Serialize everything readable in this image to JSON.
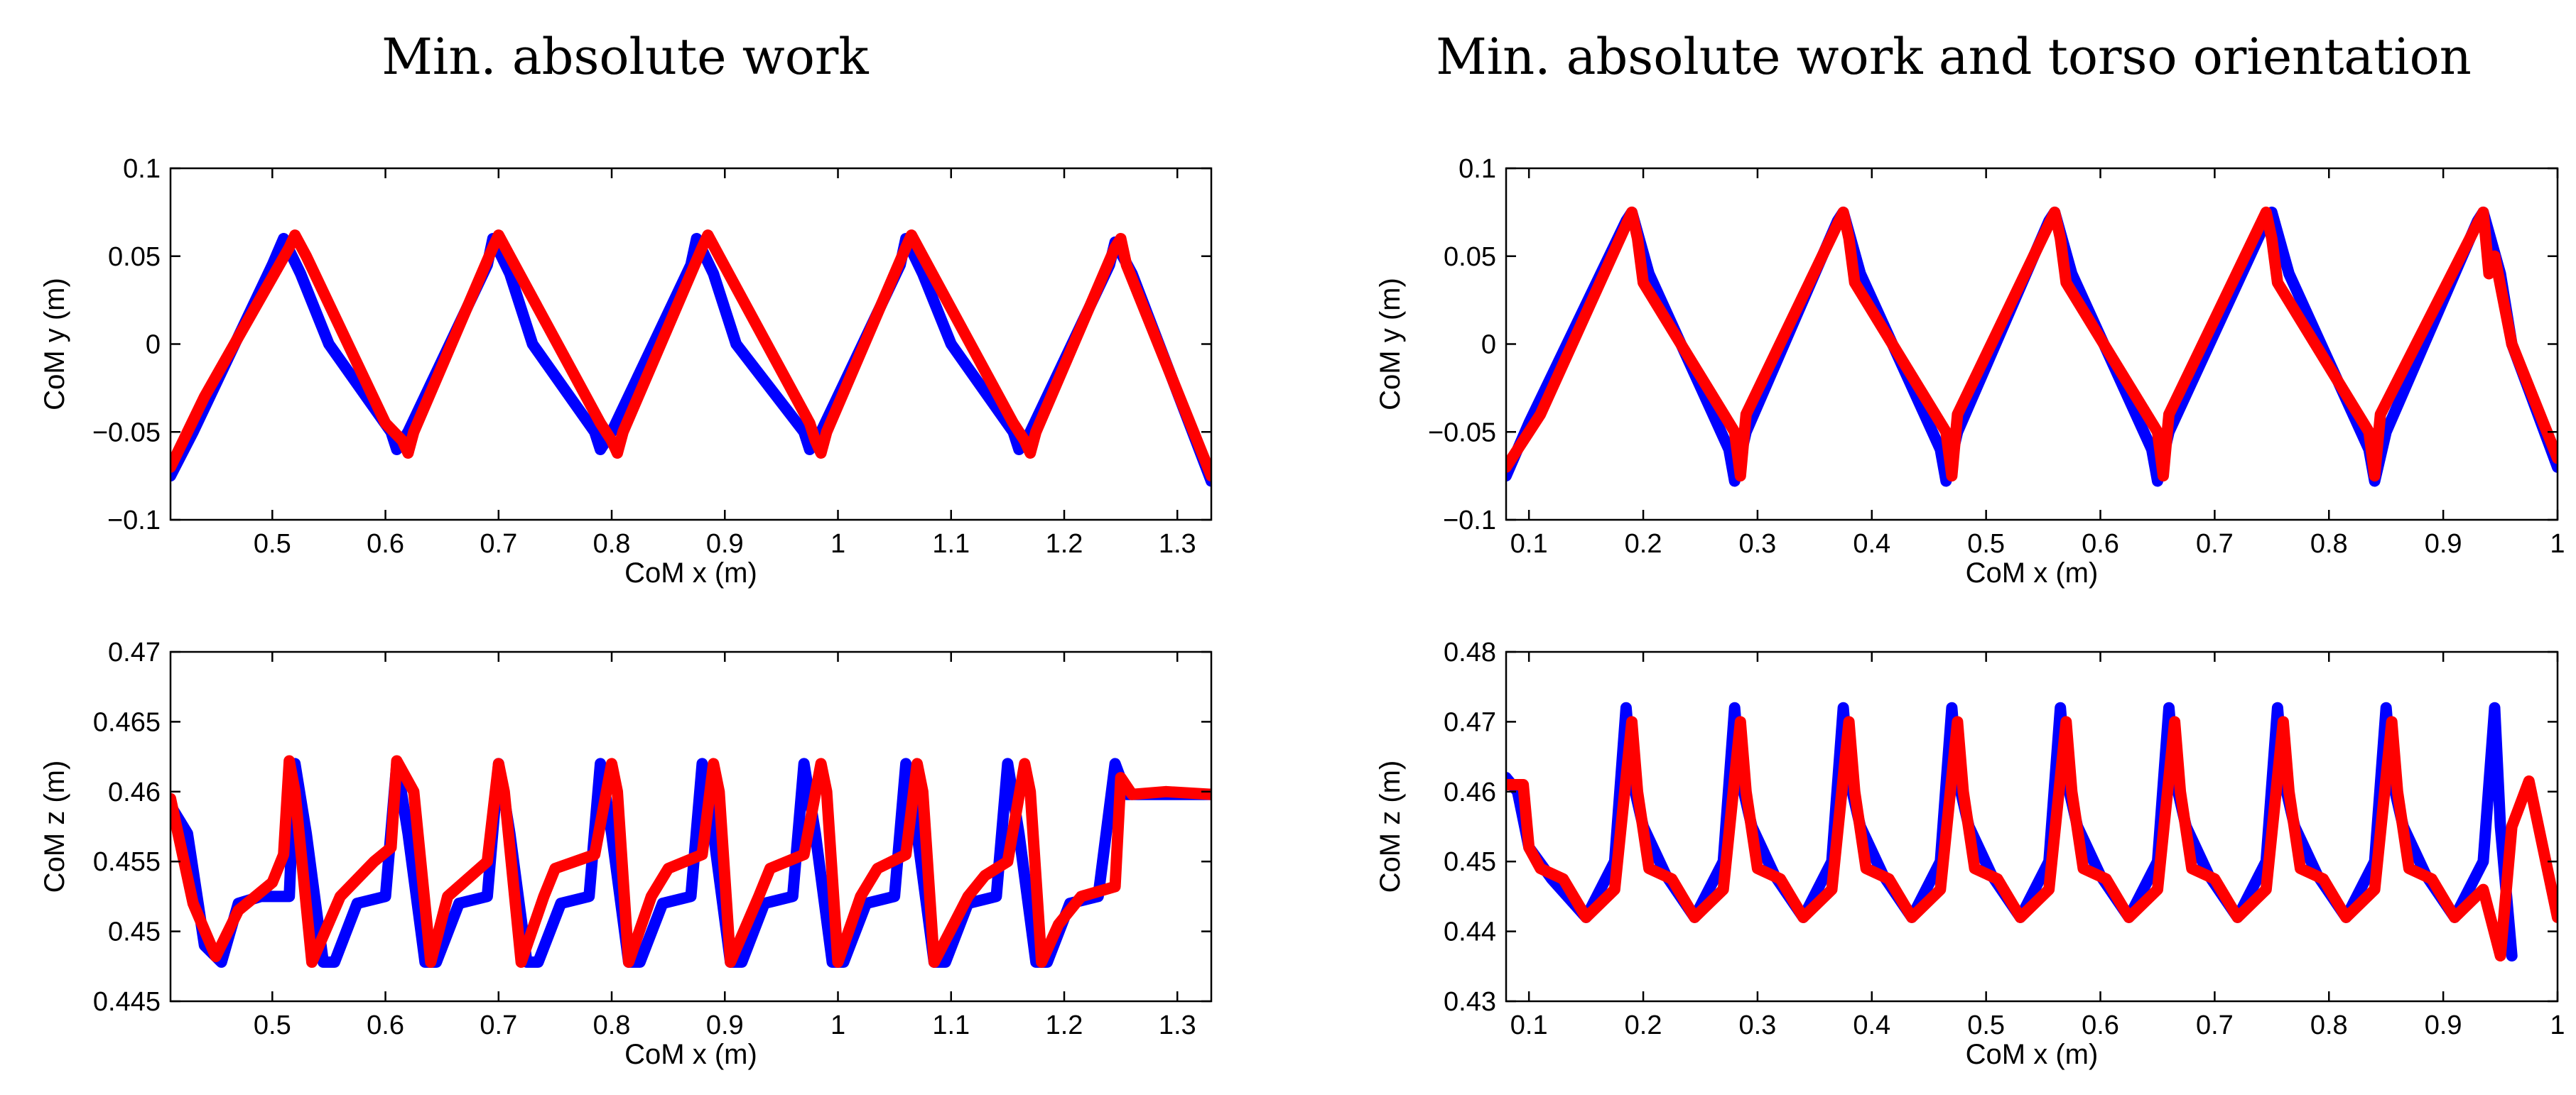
{
  "column_titles": [
    "Min. absolute work",
    "Min. absolute work and torso orientation"
  ],
  "series_colors": {
    "first": "#0000ff",
    "second": "#ff0000"
  },
  "chart_data": [
    {
      "type": "line",
      "xlabel": "CoM x (m)",
      "ylabel": "CoM y (m)",
      "xlim": [
        0.41,
        1.33
      ],
      "ylim": [
        -0.1,
        0.1
      ],
      "xticks": [
        0.5,
        0.6,
        0.7,
        0.8,
        0.9,
        1,
        1.1,
        1.2,
        1.3
      ],
      "xtick_labels": [
        "0.5",
        "0.6",
        "0.7",
        "0.8",
        "0.9",
        "1",
        "1.1",
        "1.2",
        "1.3"
      ],
      "yticks": [
        -0.1,
        -0.05,
        0,
        0.05,
        0.1
      ],
      "ytick_labels": [
        "−0.1",
        "−0.05",
        "0",
        "0.05",
        "0.1"
      ],
      "series": [
        {
          "name": "blue",
          "color": "#0000ff",
          "x": [
            0.41,
            0.43,
            0.5,
            0.51,
            0.525,
            0.55,
            0.605,
            0.61,
            0.62,
            0.69,
            0.695,
            0.71,
            0.73,
            0.785,
            0.79,
            0.8,
            0.87,
            0.875,
            0.89,
            0.91,
            0.97,
            0.975,
            0.985,
            1.055,
            1.06,
            1.075,
            1.1,
            1.155,
            1.16,
            1.17,
            1.24,
            1.245,
            1.26,
            1.33
          ],
          "y": [
            -0.075,
            -0.05,
            0.045,
            0.06,
            0.04,
            0.0,
            -0.05,
            -0.06,
            -0.05,
            0.045,
            0.06,
            0.04,
            0.0,
            -0.05,
            -0.06,
            -0.05,
            0.045,
            0.06,
            0.04,
            0.0,
            -0.05,
            -0.06,
            -0.05,
            0.045,
            0.06,
            0.04,
            0.0,
            -0.05,
            -0.06,
            -0.05,
            0.045,
            0.058,
            0.04,
            -0.078
          ]
        },
        {
          "name": "red",
          "color": "#ff0000",
          "x": [
            0.41,
            0.44,
            0.515,
            0.52,
            0.53,
            0.6,
            0.615,
            0.62,
            0.625,
            0.695,
            0.7,
            0.71,
            0.79,
            0.8,
            0.805,
            0.81,
            0.88,
            0.885,
            0.895,
            0.975,
            0.98,
            0.985,
            0.99,
            1.06,
            1.065,
            1.075,
            1.155,
            1.165,
            1.17,
            1.175,
            1.245,
            1.25,
            1.255,
            1.33
          ],
          "y": [
            -0.07,
            -0.03,
            0.055,
            0.062,
            0.05,
            -0.045,
            -0.055,
            -0.062,
            -0.05,
            0.055,
            0.062,
            0.05,
            -0.045,
            -0.055,
            -0.062,
            -0.05,
            0.055,
            0.062,
            0.05,
            -0.045,
            -0.055,
            -0.062,
            -0.05,
            0.055,
            0.062,
            0.05,
            -0.045,
            -0.055,
            -0.062,
            -0.05,
            0.055,
            0.06,
            0.045,
            -0.075
          ]
        }
      ]
    },
    {
      "type": "line",
      "xlabel": "CoM x (m)",
      "ylabel": "CoM y (m)",
      "xlim": [
        0.08,
        1.0
      ],
      "ylim": [
        -0.1,
        0.1
      ],
      "xticks": [
        0.1,
        0.2,
        0.3,
        0.4,
        0.5,
        0.6,
        0.7,
        0.8,
        0.9,
        1.0
      ],
      "xtick_labels": [
        "0.1",
        "0.2",
        "0.3",
        "0.4",
        "0.5",
        "0.6",
        "0.7",
        "0.8",
        "0.9",
        "1"
      ],
      "yticks": [
        -0.1,
        -0.05,
        0,
        0.05,
        0.1
      ],
      "ytick_labels": [
        "−0.1",
        "−0.05",
        "0",
        "0.05",
        "0.1"
      ],
      "series": [
        {
          "name": "blue",
          "color": "#0000ff",
          "x": [
            0.08,
            0.1,
            0.185,
            0.19,
            0.205,
            0.275,
            0.28,
            0.29,
            0.37,
            0.375,
            0.39,
            0.46,
            0.465,
            0.475,
            0.555,
            0.56,
            0.575,
            0.645,
            0.65,
            0.66,
            0.745,
            0.75,
            0.765,
            0.835,
            0.84,
            0.85,
            0.93,
            0.935,
            0.95,
            0.96,
            1.0
          ],
          "y": [
            -0.075,
            -0.045,
            0.07,
            0.075,
            0.04,
            -0.06,
            -0.078,
            -0.05,
            0.07,
            0.075,
            0.04,
            -0.06,
            -0.078,
            -0.05,
            0.07,
            0.075,
            0.04,
            -0.06,
            -0.078,
            -0.05,
            0.07,
            0.075,
            0.04,
            -0.06,
            -0.078,
            -0.05,
            0.07,
            0.075,
            0.04,
            0.0,
            -0.07
          ]
        },
        {
          "name": "red",
          "color": "#ff0000",
          "x": [
            0.08,
            0.11,
            0.19,
            0.195,
            0.2,
            0.28,
            0.285,
            0.29,
            0.375,
            0.38,
            0.385,
            0.465,
            0.47,
            0.475,
            0.56,
            0.565,
            0.57,
            0.65,
            0.655,
            0.66,
            0.745,
            0.75,
            0.755,
            0.835,
            0.84,
            0.845,
            0.935,
            0.94,
            0.945,
            0.96,
            1.0
          ],
          "y": [
            -0.07,
            -0.04,
            0.075,
            0.06,
            0.035,
            -0.05,
            -0.075,
            -0.04,
            0.075,
            0.06,
            0.035,
            -0.05,
            -0.075,
            -0.04,
            0.075,
            0.06,
            0.035,
            -0.05,
            -0.075,
            -0.04,
            0.075,
            0.06,
            0.035,
            -0.05,
            -0.075,
            -0.04,
            0.075,
            0.04,
            0.05,
            0.0,
            -0.065
          ]
        }
      ]
    },
    {
      "type": "line",
      "xlabel": "CoM x (m)",
      "ylabel": "CoM z (m)",
      "xlim": [
        0.41,
        1.33
      ],
      "ylim": [
        0.445,
        0.47
      ],
      "xticks": [
        0.5,
        0.6,
        0.7,
        0.8,
        0.9,
        1,
        1.1,
        1.2,
        1.3
      ],
      "xtick_labels": [
        "0.5",
        "0.6",
        "0.7",
        "0.8",
        "0.9",
        "1",
        "1.1",
        "1.2",
        "1.3"
      ],
      "yticks": [
        0.445,
        0.45,
        0.455,
        0.46,
        0.465,
        0.47
      ],
      "ytick_labels": [
        "0.445",
        "0.45",
        "0.455",
        "0.46",
        "0.465",
        "0.47"
      ],
      "series": [
        {
          "name": "blue",
          "color": "#0000ff",
          "x": [
            0.41,
            0.425,
            0.44,
            0.455,
            0.47,
            0.49,
            0.515,
            0.52,
            0.53,
            0.545,
            0.555,
            0.575,
            0.6,
            0.61,
            0.62,
            0.635,
            0.645,
            0.665,
            0.69,
            0.7,
            0.71,
            0.725,
            0.735,
            0.755,
            0.78,
            0.79,
            0.8,
            0.815,
            0.825,
            0.845,
            0.87,
            0.88,
            0.89,
            0.905,
            0.915,
            0.935,
            0.96,
            0.97,
            0.98,
            0.995,
            1.005,
            1.025,
            1.05,
            1.06,
            1.07,
            1.085,
            1.095,
            1.115,
            1.14,
            1.15,
            1.16,
            1.175,
            1.185,
            1.205,
            1.23,
            1.245,
            1.255,
            1.27,
            1.33
          ],
          "y": [
            0.459,
            0.457,
            0.449,
            0.4478,
            0.452,
            0.4525,
            0.4525,
            0.462,
            0.457,
            0.4478,
            0.4478,
            0.452,
            0.4525,
            0.462,
            0.457,
            0.4478,
            0.4478,
            0.452,
            0.4525,
            0.462,
            0.457,
            0.4478,
            0.4478,
            0.452,
            0.4525,
            0.462,
            0.457,
            0.4478,
            0.4478,
            0.452,
            0.4525,
            0.462,
            0.457,
            0.4478,
            0.4478,
            0.452,
            0.4525,
            0.462,
            0.457,
            0.4478,
            0.4478,
            0.452,
            0.4525,
            0.462,
            0.457,
            0.4478,
            0.4478,
            0.452,
            0.4525,
            0.462,
            0.457,
            0.4478,
            0.4478,
            0.452,
            0.4525,
            0.462,
            0.4598,
            0.4598,
            0.4598
          ]
        },
        {
          "name": "red",
          "color": "#ff0000",
          "x": [
            0.41,
            0.43,
            0.45,
            0.47,
            0.5,
            0.51,
            0.515,
            0.52,
            0.535,
            0.56,
            0.59,
            0.605,
            0.61,
            0.625,
            0.64,
            0.655,
            0.69,
            0.7,
            0.705,
            0.72,
            0.74,
            0.75,
            0.785,
            0.8,
            0.805,
            0.815,
            0.835,
            0.85,
            0.88,
            0.89,
            0.895,
            0.905,
            0.93,
            0.94,
            0.97,
            0.985,
            0.99,
            1.0,
            1.02,
            1.035,
            1.06,
            1.07,
            1.075,
            1.085,
            1.115,
            1.13,
            1.15,
            1.165,
            1.17,
            1.18,
            1.195,
            1.215,
            1.245,
            1.25,
            1.26,
            1.29,
            1.33
          ],
          "y": [
            0.4595,
            0.452,
            0.4482,
            0.4515,
            0.4535,
            0.4555,
            0.4622,
            0.46,
            0.4478,
            0.4525,
            0.455,
            0.456,
            0.4622,
            0.46,
            0.4478,
            0.4525,
            0.455,
            0.462,
            0.46,
            0.4478,
            0.4525,
            0.4545,
            0.4555,
            0.462,
            0.46,
            0.4478,
            0.4525,
            0.4545,
            0.4555,
            0.462,
            0.46,
            0.4478,
            0.4525,
            0.4545,
            0.4555,
            0.462,
            0.46,
            0.4478,
            0.4525,
            0.4545,
            0.4555,
            0.462,
            0.46,
            0.4478,
            0.4525,
            0.454,
            0.455,
            0.462,
            0.46,
            0.4478,
            0.4505,
            0.4525,
            0.4532,
            0.461,
            0.4598,
            0.46,
            0.4598
          ]
        }
      ]
    },
    {
      "type": "line",
      "xlabel": "CoM x (m)",
      "ylabel": "CoM z (m)",
      "xlim": [
        0.08,
        1.0
      ],
      "ylim": [
        0.43,
        0.48
      ],
      "xticks": [
        0.1,
        0.2,
        0.3,
        0.4,
        0.5,
        0.6,
        0.7,
        0.8,
        0.9,
        1.0
      ],
      "xtick_labels": [
        "0.1",
        "0.2",
        "0.3",
        "0.4",
        "0.5",
        "0.6",
        "0.7",
        "0.8",
        "0.9",
        "1"
      ],
      "yticks": [
        0.43,
        0.44,
        0.45,
        0.46,
        0.47,
        0.48
      ],
      "ytick_labels": [
        "0.43",
        "0.44",
        "0.45",
        "0.46",
        "0.47",
        "0.48"
      ],
      "series": [
        {
          "name": "blue",
          "color": "#0000ff",
          "x": [
            0.08,
            0.09,
            0.1,
            0.12,
            0.15,
            0.175,
            0.185,
            0.19,
            0.2,
            0.22,
            0.245,
            0.27,
            0.28,
            0.285,
            0.295,
            0.315,
            0.34,
            0.365,
            0.375,
            0.38,
            0.39,
            0.41,
            0.435,
            0.46,
            0.47,
            0.475,
            0.485,
            0.505,
            0.53,
            0.555,
            0.565,
            0.57,
            0.58,
            0.6,
            0.625,
            0.65,
            0.66,
            0.665,
            0.675,
            0.695,
            0.72,
            0.745,
            0.755,
            0.76,
            0.77,
            0.79,
            0.815,
            0.84,
            0.85,
            0.855,
            0.865,
            0.885,
            0.91,
            0.935,
            0.945,
            0.95,
            0.96
          ],
          "y": [
            0.462,
            0.46,
            0.452,
            0.4475,
            0.442,
            0.45,
            0.472,
            0.462,
            0.455,
            0.448,
            0.442,
            0.45,
            0.472,
            0.462,
            0.455,
            0.448,
            0.442,
            0.45,
            0.472,
            0.462,
            0.455,
            0.448,
            0.442,
            0.45,
            0.472,
            0.462,
            0.455,
            0.448,
            0.442,
            0.45,
            0.472,
            0.462,
            0.455,
            0.448,
            0.442,
            0.45,
            0.472,
            0.462,
            0.455,
            0.448,
            0.442,
            0.45,
            0.472,
            0.462,
            0.455,
            0.448,
            0.442,
            0.45,
            0.472,
            0.462,
            0.455,
            0.448,
            0.442,
            0.45,
            0.472,
            0.455,
            0.4365
          ]
        },
        {
          "name": "red",
          "color": "#ff0000",
          "x": [
            0.08,
            0.095,
            0.1,
            0.11,
            0.13,
            0.15,
            0.175,
            0.19,
            0.195,
            0.205,
            0.225,
            0.245,
            0.27,
            0.285,
            0.29,
            0.3,
            0.32,
            0.34,
            0.365,
            0.38,
            0.385,
            0.395,
            0.415,
            0.435,
            0.46,
            0.475,
            0.48,
            0.49,
            0.51,
            0.53,
            0.555,
            0.57,
            0.575,
            0.585,
            0.605,
            0.625,
            0.65,
            0.665,
            0.67,
            0.68,
            0.7,
            0.72,
            0.745,
            0.76,
            0.765,
            0.775,
            0.795,
            0.815,
            0.84,
            0.855,
            0.86,
            0.87,
            0.89,
            0.91,
            0.935,
            0.95,
            0.96,
            0.975,
            1.0
          ],
          "y": [
            0.461,
            0.461,
            0.452,
            0.449,
            0.4475,
            0.442,
            0.446,
            0.47,
            0.46,
            0.449,
            0.4475,
            0.442,
            0.446,
            0.47,
            0.46,
            0.449,
            0.4475,
            0.442,
            0.446,
            0.47,
            0.46,
            0.449,
            0.4475,
            0.442,
            0.446,
            0.47,
            0.46,
            0.449,
            0.4475,
            0.442,
            0.446,
            0.47,
            0.46,
            0.449,
            0.4475,
            0.442,
            0.446,
            0.47,
            0.46,
            0.449,
            0.4475,
            0.442,
            0.446,
            0.47,
            0.46,
            0.449,
            0.4475,
            0.442,
            0.446,
            0.47,
            0.46,
            0.449,
            0.4475,
            0.442,
            0.446,
            0.4365,
            0.455,
            0.4615,
            0.442
          ]
        }
      ]
    }
  ]
}
